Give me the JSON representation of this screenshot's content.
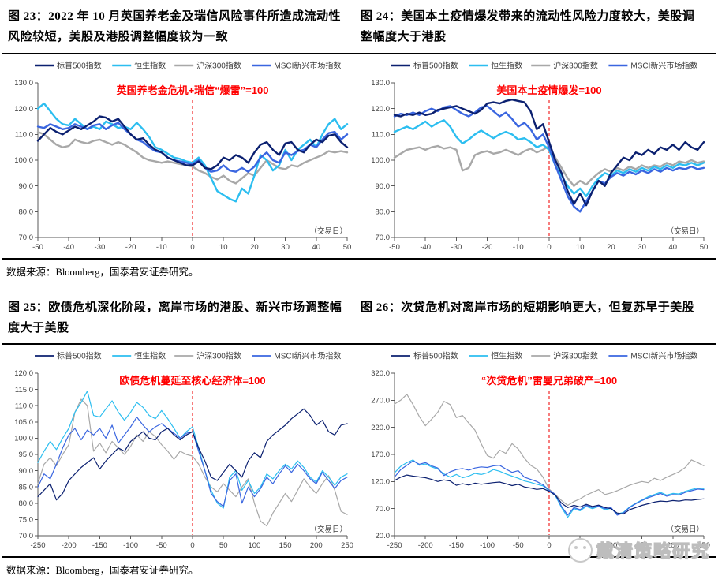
{
  "page": {
    "source_note": "数据来源：Bloomberg，国泰君安证券研究。",
    "watermark": "戴清策略研究"
  },
  "colors": {
    "sp500": "#0B2070",
    "hang_seng": "#2CBEF0",
    "csi300": "#A8A8A8",
    "msci_em": "#3A66E0",
    "annotation_red": "#FF0000",
    "event_line_red": "#F55B5B",
    "axis_gray": "#595959",
    "tick_text": "#3F3F3F"
  },
  "chart_data": [
    {
      "name": "figure-23",
      "type": "line",
      "title": "图 23：2022 年 10 月英国养老金及瑞信风险事件所造成流动性风险较短，美股及港股调整幅度较为一致",
      "annotation": "英国养老金危机+瑞信“爆雷”=100",
      "annotation_color": "#FF0000",
      "event_line_color": "#F55B5B",
      "xlabel": "（交易日）",
      "legend_position": "top",
      "grid": false,
      "xlim": [
        -50,
        50
      ],
      "xtick_step": 10,
      "ylim": [
        70,
        130
      ],
      "ytick_step": 10,
      "line_width": 2.4,
      "draw_order": [
        2,
        1,
        3,
        0
      ],
      "series": [
        {
          "name": "标普500指数",
          "color": "#0B2070",
          "values": [
            107.5,
            110,
            112.5,
            111,
            110,
            111.5,
            113,
            112,
            113.5,
            115,
            117,
            116.5,
            115,
            116,
            113,
            110,
            108,
            108.5,
            106,
            104,
            103,
            101,
            100,
            99,
            98,
            98,
            99.5,
            97,
            96.5,
            98,
            101,
            100,
            102,
            101,
            99,
            103,
            106,
            107,
            104,
            102,
            106.5,
            107,
            104,
            103,
            106,
            108,
            107,
            109.5,
            110,
            107,
            105
          ]
        },
        {
          "name": "恒生指数",
          "color": "#2CBEF0",
          "values": [
            120,
            122,
            119,
            116,
            114,
            113.5,
            116,
            114,
            112,
            113,
            112,
            115,
            114,
            112.5,
            113,
            112,
            114.5,
            112,
            109,
            105,
            104,
            102.5,
            101,
            100.5,
            99.5,
            99,
            101,
            98,
            93,
            88,
            86.5,
            85,
            84,
            89,
            87,
            94,
            102,
            100,
            96,
            98,
            104,
            100,
            104,
            106,
            108,
            105,
            110,
            114,
            116,
            112,
            114
          ]
        },
        {
          "name": "沪深300指数",
          "color": "#A8A8A8",
          "values": [
            111,
            110,
            108,
            106,
            105,
            105.5,
            108,
            107,
            106.5,
            107.5,
            108,
            107,
            106,
            107,
            106,
            104.5,
            103,
            101,
            100,
            99.5,
            99,
            99.5,
            99,
            98.5,
            98,
            97.5,
            96,
            95,
            93.5,
            92.5,
            94,
            92,
            91,
            93,
            95,
            94,
            97,
            100,
            98.5,
            97,
            96.5,
            98,
            97.5,
            99,
            100,
            101,
            102,
            103.5,
            103,
            103.5,
            103
          ]
        },
        {
          "name": "MSCI新兴市场指数",
          "color": "#3A66E0",
          "values": [
            113,
            112.5,
            114,
            113,
            112,
            112.5,
            114,
            113,
            112,
            113.5,
            114,
            112,
            113.5,
            114.5,
            112,
            110,
            108,
            107,
            105,
            103.5,
            103,
            101,
            100,
            99.5,
            99,
            98.5,
            100,
            97,
            95.5,
            96,
            98,
            96,
            95.5,
            97,
            95.5,
            97.5,
            101,
            103,
            100,
            99,
            103,
            102,
            103.5,
            104,
            106,
            105,
            108,
            110.5,
            111,
            108,
            110
          ]
        }
      ]
    },
    {
      "name": "figure-24",
      "type": "line",
      "title": "图 24：美国本土疫情爆发带来的流动性风险力度较大，美股调整幅度大于港股",
      "annotation": "美国本土疫情爆发=100",
      "annotation_color": "#FF0000",
      "event_line_color": "#F55B5B",
      "xlabel": "（交易日）",
      "legend_position": "top",
      "grid": false,
      "xlim": [
        -50,
        50
      ],
      "xtick_step": 10,
      "ylim": [
        70,
        130
      ],
      "ytick_step": 10,
      "line_width": 2.4,
      "draw_order": [
        2,
        1,
        3,
        0
      ],
      "series": [
        {
          "name": "标普500指数",
          "color": "#0B2070",
          "values": [
            117.5,
            117,
            118,
            117.5,
            118.5,
            117.5,
            118,
            119.5,
            120,
            120.5,
            121,
            120,
            119,
            118,
            119.5,
            122,
            122.5,
            122,
            123,
            123.5,
            123,
            122.5,
            119,
            112,
            114,
            107,
            100,
            95,
            88,
            83,
            87,
            82.5,
            88,
            92,
            90,
            95,
            98,
            101,
            100,
            103,
            102,
            104,
            102.5,
            105,
            104,
            106,
            104,
            107,
            105,
            104,
            107
          ]
        },
        {
          "name": "恒生指数",
          "color": "#2CBEF0",
          "values": [
            111,
            112,
            113,
            112,
            113.5,
            115,
            113,
            114.5,
            115.5,
            113,
            109,
            106.5,
            108,
            110,
            111.5,
            110,
            108.5,
            110,
            111,
            110,
            108,
            108.5,
            107,
            105,
            106,
            104,
            98,
            94,
            90,
            87,
            89,
            86,
            90,
            93,
            95,
            94,
            96,
            95,
            96.5,
            95.5,
            97,
            96,
            97.5,
            96.5,
            98,
            97,
            98.5,
            98,
            99,
            98,
            99
          ]
        },
        {
          "name": "沪深300指数",
          "color": "#A8A8A8",
          "values": [
            101,
            102.5,
            104,
            104.5,
            105,
            104,
            105,
            105.5,
            104.5,
            105,
            104,
            96,
            97,
            102,
            103,
            103.5,
            102.5,
            103,
            104,
            103,
            102,
            103.5,
            104.5,
            103,
            104,
            105.5,
            101,
            97,
            93,
            90,
            92,
            90.5,
            93,
            95,
            96.5,
            95.5,
            97,
            96,
            97.5,
            96.5,
            98,
            97,
            98,
            97.5,
            99,
            98,
            99.5,
            99,
            100,
            99,
            99.5
          ]
        },
        {
          "name": "MSCI新兴市场指数",
          "color": "#3A66E0",
          "values": [
            117,
            118,
            117.5,
            118.5,
            117.5,
            119,
            120,
            119,
            120.5,
            121,
            119.5,
            118,
            117,
            118.5,
            120.5,
            121,
            119,
            117,
            118.5,
            116,
            113,
            114.5,
            112,
            108,
            110,
            105,
            98,
            92,
            86,
            82,
            80,
            84,
            88,
            92,
            91,
            93.5,
            95,
            94,
            95.5,
            94.5,
            96,
            95,
            96.5,
            95.5,
            97,
            96,
            97,
            96.5,
            97.5,
            96.5,
            97
          ]
        }
      ]
    },
    {
      "name": "figure-25",
      "type": "line",
      "title": "图 25：欧债危机深化阶段，离岸市场的港股、新兴市场调整幅度大于美股",
      "annotation": "欧债危机蔓延至核心经济体=100",
      "annotation_color": "#FF0000",
      "event_line_color": "#F55B5B",
      "xlabel": "（交易日）",
      "legend_position": "top",
      "grid": false,
      "xlim": [
        -250,
        250
      ],
      "xtick_step": 50,
      "ylim": [
        70,
        120
      ],
      "ytick_step": 5,
      "line_width": 1.2,
      "draw_order": [
        2,
        1,
        3,
        0
      ],
      "series": [
        {
          "name": "标普500指数",
          "color": "#0B2070",
          "values": [
            82,
            84,
            86,
            81,
            83,
            87,
            89,
            91,
            92.5,
            94,
            90.5,
            93,
            95,
            97,
            96,
            99,
            100.5,
            102,
            100,
            99.5,
            102,
            103,
            101,
            99.5,
            101,
            102,
            97,
            93,
            88,
            87,
            89.5,
            92,
            90,
            88,
            93,
            95.5,
            94,
            99,
            101,
            102.5,
            104,
            106,
            107.5,
            109,
            107,
            104,
            105.5,
            102,
            101,
            104,
            104.5
          ]
        },
        {
          "name": "恒生指数",
          "color": "#2CBEF0",
          "values": [
            92.5,
            96,
            99,
            96.5,
            100,
            103,
            108,
            111,
            114.5,
            107,
            106.5,
            109,
            111.5,
            108,
            105.5,
            108,
            111,
            109.5,
            107,
            106,
            108.5,
            106,
            103,
            100,
            102,
            103.5,
            97,
            90,
            84,
            80,
            78.5,
            88,
            90,
            84,
            87,
            83,
            85,
            89,
            87.5,
            90,
            92,
            90.5,
            93,
            91,
            88,
            86.5,
            90,
            88,
            85.5,
            88,
            89
          ]
        },
        {
          "name": "沪深300指数",
          "color": "#A8A8A8",
          "values": [
            86,
            92,
            94,
            91.5,
            95,
            98,
            108,
            112,
            110,
            96,
            98.5,
            95.5,
            99,
            97,
            95,
            97.5,
            101,
            99,
            102,
            100.5,
            98,
            96,
            93.5,
            96,
            95,
            94.5,
            92,
            88,
            85,
            83.5,
            86,
            84,
            82,
            85,
            87.5,
            80,
            74.5,
            73,
            77,
            80,
            83,
            80.5,
            84,
            87.5,
            85,
            83,
            86,
            88.5,
            84,
            77.5,
            76.5
          ]
        },
        {
          "name": "MSCI新兴市场指数",
          "color": "#3A66E0",
          "values": [
            85,
            89,
            87.5,
            92,
            97,
            101,
            103,
            99.5,
            102.5,
            101,
            103,
            100,
            104,
            98.5,
            101,
            103.5,
            106.5,
            104,
            102,
            103.5,
            104.5,
            103,
            101.5,
            100,
            101.5,
            102,
            96,
            90,
            83,
            80.5,
            79,
            87,
            89,
            80,
            85,
            82,
            84.5,
            88,
            86,
            89,
            91.5,
            89.5,
            92,
            90,
            87.5,
            86,
            89.5,
            87,
            84.5,
            87,
            88
          ]
        }
      ]
    },
    {
      "name": "figure-26",
      "type": "line",
      "title": "图 26：次贷危机对离岸市场的短期影响更大，但复苏早于美股",
      "annotation": "“次贷危机”雷曼兄弟破产=100",
      "annotation_color": "#FF0000",
      "event_line_color": "#F55B5B",
      "xlabel": "（交易日）",
      "legend_position": "top",
      "grid": false,
      "xlim": [
        -250,
        250
      ],
      "xtick_step": 50,
      "ylim": [
        20,
        320
      ],
      "ytick_step": 50,
      "line_width": 1.2,
      "draw_order": [
        2,
        1,
        3,
        0
      ],
      "series": [
        {
          "name": "标普500指数",
          "color": "#0B2070",
          "values": [
            122,
            128,
            132,
            130,
            128.5,
            127,
            124,
            120,
            123,
            121,
            113,
            116,
            113.5,
            117,
            115,
            116.5,
            118,
            119,
            116,
            112.5,
            115,
            110,
            108,
            105.5,
            107,
            102,
            95,
            80,
            72,
            76,
            73,
            78,
            74,
            76.5,
            72,
            70,
            62,
            60,
            68,
            72,
            76,
            79,
            82,
            84,
            83,
            85,
            84,
            86,
            85.5,
            87,
            88
          ]
        },
        {
          "name": "恒生指数",
          "color": "#2CBEF0",
          "values": [
            136,
            148,
            155,
            160,
            150,
            152.5,
            147,
            143,
            134,
            128,
            133,
            127,
            130,
            135,
            133,
            136,
            142,
            139,
            134,
            130,
            126,
            121,
            118.5,
            115,
            112,
            103,
            94,
            72,
            54,
            70,
            66,
            74,
            70,
            74,
            68,
            70.5,
            60,
            63,
            73,
            80,
            86,
            92,
            96,
            100,
            95,
            98,
            97,
            102,
            105,
            108,
            107
          ]
        },
        {
          "name": "沪深300指数",
          "color": "#A8A8A8",
          "values": [
            263,
            270,
            281,
            262,
            240,
            223,
            235,
            248,
            268,
            262,
            238,
            242,
            228,
            215,
            190,
            168,
            163,
            178,
            172,
            190,
            180,
            163,
            150,
            143,
            128,
            106,
            96,
            85,
            76,
            83,
            88,
            95,
            100,
            105,
            96,
            99,
            103,
            108,
            113,
            117,
            120,
            118,
            126,
            122,
            128,
            133,
            138,
            146,
            160,
            155,
            149
          ]
        },
        {
          "name": "MSCI新兴市场指数",
          "color": "#3A66E0",
          "values": [
            128,
            142,
            150,
            158,
            152,
            155,
            149,
            145,
            131,
            138,
            142,
            144,
            141,
            145,
            147,
            146,
            149,
            150,
            143,
            137,
            140,
            128,
            124,
            120,
            114,
            104,
            96,
            74,
            58,
            72,
            68,
            76,
            72,
            75,
            70,
            72,
            58,
            62,
            72,
            79,
            85,
            90,
            94,
            98,
            93,
            96,
            95,
            100,
            103,
            106,
            105
          ]
        }
      ]
    }
  ]
}
